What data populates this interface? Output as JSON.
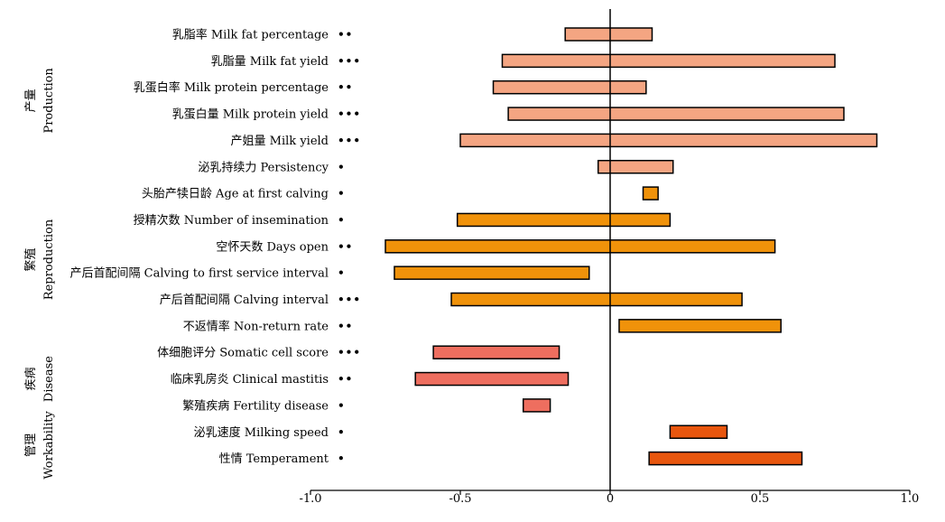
{
  "chart_data": {
    "type": "bar",
    "subtype": "floating-range-horizontal",
    "x_ticks": [
      "-1.0",
      "-0.5",
      "0",
      "0.5",
      "1.0"
    ],
    "x_tick_values": [
      -1.0,
      -0.5,
      0,
      0.5,
      1.0
    ],
    "xlim": [
      -1.0,
      1.0
    ],
    "zero_line": 0,
    "grid": false,
    "legend": "none",
    "groups": [
      {
        "name_zh": "产量",
        "name_en": "Production",
        "color": "#F4A582",
        "row_start": 0,
        "row_end": 5
      },
      {
        "name_zh": "繁殖",
        "name_en": "Reproduction",
        "color": "#F0920A",
        "row_start": 6,
        "row_end": 11
      },
      {
        "name_zh": "疾病",
        "name_en": "Disease",
        "color": "#EE6E5F",
        "row_start": 12,
        "row_end": 14
      },
      {
        "name_zh": "管理",
        "name_en": "Workability",
        "color": "#E8560E",
        "row_start": 15,
        "row_end": 16
      }
    ],
    "rows": [
      {
        "label": "乳脂率 Milk fat percentage",
        "significance": "••",
        "range": [
          -0.15,
          0.14
        ],
        "group": 0
      },
      {
        "label": "乳脂量 Milk fat yield",
        "significance": "•••",
        "range": [
          -0.36,
          0.75
        ],
        "group": 0
      },
      {
        "label": "乳蛋白率 Milk protein percentage",
        "significance": "••",
        "range": [
          -0.39,
          0.12
        ],
        "group": 0
      },
      {
        "label": "乳蛋白量 Milk protein yield",
        "significance": "•••",
        "range": [
          -0.34,
          0.78
        ],
        "group": 0
      },
      {
        "label": "产姐量 Milk yield",
        "significance": "•••",
        "range": [
          -0.5,
          0.89
        ],
        "group": 0
      },
      {
        "label": "泌乳持续力 Persistency",
        "significance": "•",
        "range": [
          -0.04,
          0.21
        ],
        "group": 0
      },
      {
        "label": "头胎产犊日龄 Age at first calving",
        "significance": "•",
        "range": [
          0.11,
          0.16
        ],
        "group": 1
      },
      {
        "label": "授精次数 Number of insemination",
        "significance": "•",
        "range": [
          -0.51,
          0.2
        ],
        "group": 1
      },
      {
        "label": "空怀天数 Days open",
        "significance": "••",
        "range": [
          -0.75,
          0.55
        ],
        "group": 1
      },
      {
        "label": "产后首配间隔 Calving to first service interval",
        "significance": "•",
        "range": [
          -0.72,
          -0.07
        ],
        "group": 1
      },
      {
        "label": "产后首配间隔 Calving interval",
        "significance": "•••",
        "range": [
          -0.53,
          0.44
        ],
        "group": 1
      },
      {
        "label": "不返情率 Non-return rate",
        "significance": "••",
        "range": [
          0.03,
          0.57
        ],
        "group": 1
      },
      {
        "label": "体细胞评分 Somatic cell score",
        "significance": "•••",
        "range": [
          -0.59,
          -0.17
        ],
        "group": 2
      },
      {
        "label": "临床乳房炎 Clinical mastitis",
        "significance": "••",
        "range": [
          -0.65,
          -0.14
        ],
        "group": 2
      },
      {
        "label": "繁殖疾病 Fertility disease",
        "significance": "•",
        "range": [
          -0.29,
          -0.2
        ],
        "group": 2
      },
      {
        "label": "泌乳速度 Milking speed",
        "significance": "•",
        "range": [
          0.2,
          0.39
        ],
        "group": 3
      },
      {
        "label": "性情 Temperament",
        "significance": "•",
        "range": [
          0.13,
          0.64
        ],
        "group": 3
      }
    ]
  }
}
